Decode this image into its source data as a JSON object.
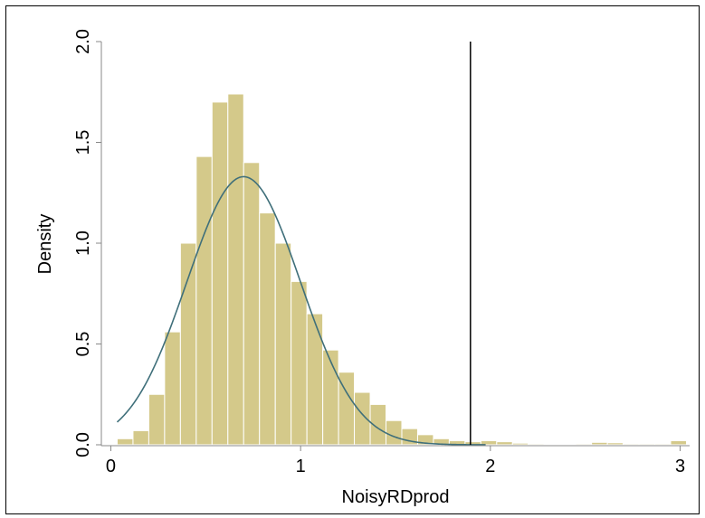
{
  "chart_data": {
    "type": "bar",
    "title": "",
    "xlabel": "NoisyRDprod",
    "ylabel": "Density",
    "xlim": [
      -0.05,
      3.05
    ],
    "ylim": [
      0,
      2.0
    ],
    "x_ticks": [
      0,
      1,
      2,
      3
    ],
    "x_tick_labels": [
      "0",
      "1",
      "2",
      "3"
    ],
    "y_ticks": [
      0,
      0.5,
      1.0,
      1.5,
      2.0
    ],
    "y_tick_labels": [
      "0.0",
      "0.5",
      "1.0",
      "1.5",
      "2.0"
    ],
    "bin_width": 0.0833,
    "histogram": {
      "bin_starts": [
        0.0333,
        0.1167,
        0.2,
        0.2833,
        0.3667,
        0.45,
        0.5333,
        0.6167,
        0.7,
        0.7833,
        0.8667,
        0.95,
        1.0333,
        1.1167,
        1.2,
        1.2833,
        1.3667,
        1.45,
        1.5333,
        1.6167,
        1.7,
        1.7833,
        1.8667,
        1.95,
        2.0333,
        2.1167,
        2.2,
        2.2833,
        2.3667,
        2.45,
        2.5333,
        2.6167,
        2.7,
        2.7833,
        2.8667,
        2.95
      ],
      "density": [
        0.03,
        0.07,
        0.25,
        0.56,
        1.0,
        1.43,
        1.7,
        1.74,
        1.4,
        1.15,
        1.0,
        0.81,
        0.65,
        0.47,
        0.36,
        0.26,
        0.2,
        0.12,
        0.08,
        0.05,
        0.03,
        0.02,
        0.015,
        0.02,
        0.015,
        0.008,
        0.005,
        0.004,
        0.004,
        0.005,
        0.012,
        0.01,
        0.005,
        0.005,
        0.005,
        0.02
      ]
    },
    "normal_curve": {
      "mean": 0.7,
      "sd": 0.3
    },
    "reference_line_x": 1.895,
    "colors": {
      "bar_fill": "#d4c98a",
      "bar_edge": "#ffffff",
      "curve": "#3f6f7a",
      "axis": "#888888",
      "reference_line": "#000000"
    },
    "grid": false,
    "legend": "none"
  }
}
